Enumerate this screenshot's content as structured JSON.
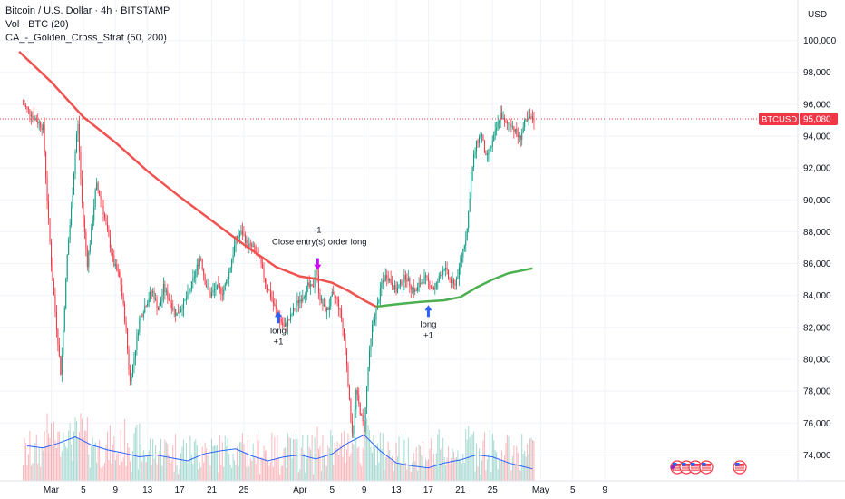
{
  "legend": {
    "title": "Bitcoin / U.S. Dollar · 4h · BITSTAMP",
    "volume": "Vol · BTC (20)",
    "strategy": "CA_-_Golden_Cross_Strat (50, 200)"
  },
  "currency_label": "USD",
  "last_price": {
    "symbol": "BTCUSD",
    "value": "95,080",
    "y": 95080
  },
  "colors": {
    "up": "#089981",
    "down": "#f23645",
    "ma_red": "#ef5350",
    "ma_green": "#4caf50",
    "vol_ma": "#2962ff",
    "signal": "#2962ff",
    "close": "#d500f9"
  },
  "chart_data": {
    "type": "candlestick",
    "ylim": [
      72600,
      101400
    ],
    "y_ticks": [
      "100,000",
      "98,000",
      "96,000",
      "94,000",
      "92,000",
      "90,000",
      "88,000",
      "86,000",
      "84,000",
      "82,000",
      "80,000",
      "78,000",
      "76,000",
      "74,000"
    ],
    "y_tick_values": [
      100000,
      98000,
      96000,
      94000,
      92000,
      90000,
      88000,
      86000,
      84000,
      82000,
      80000,
      78000,
      76000,
      74000
    ],
    "x_ticks": [
      "Mar",
      "5",
      "9",
      "13",
      "17",
      "21",
      "25",
      "Apr",
      "5",
      "9",
      "13",
      "17",
      "21",
      "25",
      "May",
      "5",
      "9"
    ],
    "x_tick_days": [
      1,
      5,
      9,
      13,
      17,
      21,
      25,
      32,
      36,
      40,
      44,
      48,
      52,
      56,
      62,
      66,
      70
    ],
    "x_unit": "days since Feb 28",
    "price_path": [
      [
        -2.5,
        96000
      ],
      [
        0,
        94500
      ],
      [
        0.5,
        90000
      ],
      [
        1,
        86000
      ],
      [
        1.5,
        83000
      ],
      [
        2.2,
        79000
      ],
      [
        3,
        86500
      ],
      [
        3.6,
        90000
      ],
      [
        4,
        93000
      ],
      [
        4.3,
        95000
      ],
      [
        4.8,
        90000
      ],
      [
        5.5,
        86000
      ],
      [
        6,
        88000
      ],
      [
        6.6,
        91000
      ],
      [
        7.2,
        90000
      ],
      [
        8,
        88000
      ],
      [
        8.8,
        86000
      ],
      [
        9.6,
        85000
      ],
      [
        10.3,
        82000
      ],
      [
        10.8,
        78500
      ],
      [
        11.3,
        80000
      ],
      [
        12,
        82500
      ],
      [
        12.8,
        83500
      ],
      [
        13.6,
        84300
      ],
      [
        14.4,
        83000
      ],
      [
        15,
        84500
      ],
      [
        15.8,
        83600
      ],
      [
        16.6,
        82800
      ],
      [
        17.4,
        83400
      ],
      [
        18.2,
        84200
      ],
      [
        19,
        85500
      ],
      [
        19.6,
        86500
      ],
      [
        20.2,
        84800
      ],
      [
        20.8,
        84000
      ],
      [
        21.6,
        84500
      ],
      [
        22.4,
        84200
      ],
      [
        23.2,
        85500
      ],
      [
        24,
        87500
      ],
      [
        24.8,
        88000
      ],
      [
        25.4,
        87200
      ],
      [
        26.2,
        87000
      ],
      [
        27,
        86200
      ],
      [
        27.6,
        85000
      ],
      [
        28.2,
        84200
      ],
      [
        28.8,
        83300
      ],
      [
        29.4,
        82600
      ],
      [
        30,
        82000
      ],
      [
        30.8,
        82600
      ],
      [
        31.6,
        83500
      ],
      [
        32.4,
        84000
      ],
      [
        33,
        84600
      ],
      [
        33.6,
        84400
      ],
      [
        34,
        86000
      ],
      [
        34.4,
        84000
      ],
      [
        34.8,
        83400
      ],
      [
        35.4,
        83000
      ],
      [
        36,
        84000
      ],
      [
        36.6,
        83800
      ],
      [
        37.2,
        82500
      ],
      [
        37.8,
        80000
      ],
      [
        38.2,
        77000
      ],
      [
        38.6,
        75000
      ],
      [
        39,
        78000
      ],
      [
        39.6,
        76500
      ],
      [
        40,
        75600
      ],
      [
        40.5,
        79500
      ],
      [
        41,
        82000
      ],
      [
        41.6,
        83200
      ],
      [
        42.2,
        84800
      ],
      [
        42.8,
        85300
      ],
      [
        43.4,
        84800
      ],
      [
        44,
        84300
      ],
      [
        44.6,
        84800
      ],
      [
        45.2,
        85200
      ],
      [
        45.8,
        84600
      ],
      [
        46.4,
        84200
      ],
      [
        47,
        84800
      ],
      [
        47.6,
        85100
      ],
      [
        48.2,
        84700
      ],
      [
        48.8,
        84400
      ],
      [
        49.4,
        85200
      ],
      [
        50,
        85800
      ],
      [
        50.6,
        85000
      ],
      [
        51.2,
        84600
      ],
      [
        51.8,
        85500
      ],
      [
        52.3,
        86800
      ],
      [
        52.8,
        88000
      ],
      [
        53.2,
        90500
      ],
      [
        53.6,
        92500
      ],
      [
        54,
        93500
      ],
      [
        54.6,
        94200
      ],
      [
        55.2,
        92500
      ],
      [
        55.8,
        93300
      ],
      [
        56.4,
        94300
      ],
      [
        57,
        95400
      ],
      [
        57.6,
        94700
      ],
      [
        58.2,
        94900
      ],
      [
        58.8,
        94300
      ],
      [
        59.4,
        93800
      ],
      [
        60,
        94800
      ],
      [
        60.6,
        95100
      ],
      [
        61.2,
        95080
      ]
    ],
    "ma_red_path": [
      [
        -3,
        99300
      ],
      [
        1,
        97400
      ],
      [
        5,
        95200
      ],
      [
        9,
        93600
      ],
      [
        13,
        91800
      ],
      [
        17,
        90200
      ],
      [
        21,
        88700
      ],
      [
        25,
        87200
      ],
      [
        29,
        85800
      ],
      [
        32,
        85200
      ],
      [
        34,
        85050
      ],
      [
        36,
        84800
      ],
      [
        38,
        84300
      ],
      [
        40,
        83700
      ],
      [
        41.5,
        83300
      ]
    ],
    "ma_green_path": [
      [
        41.5,
        83300
      ],
      [
        44,
        83450
      ],
      [
        47,
        83600
      ],
      [
        50,
        83700
      ],
      [
        52,
        83900
      ],
      [
        54,
        84500
      ],
      [
        56,
        85000
      ],
      [
        58,
        85400
      ],
      [
        61,
        85700
      ]
    ],
    "volume_ma_ylim": [
      0,
      100
    ],
    "volume_ma_path": [
      [
        -2,
        35
      ],
      [
        0,
        33
      ],
      [
        2,
        38
      ],
      [
        4,
        44
      ],
      [
        6,
        36
      ],
      [
        8,
        31
      ],
      [
        10,
        28
      ],
      [
        12,
        24
      ],
      [
        14,
        26
      ],
      [
        16,
        23
      ],
      [
        18,
        20
      ],
      [
        20,
        27
      ],
      [
        22,
        30
      ],
      [
        24,
        32
      ],
      [
        26,
        25
      ],
      [
        28,
        20
      ],
      [
        30,
        24
      ],
      [
        32,
        26
      ],
      [
        34,
        22
      ],
      [
        36,
        27
      ],
      [
        38,
        38
      ],
      [
        40,
        46
      ],
      [
        42,
        30
      ],
      [
        44,
        18
      ],
      [
        46,
        15
      ],
      [
        48,
        13
      ],
      [
        50,
        18
      ],
      [
        52,
        21
      ],
      [
        54,
        26
      ],
      [
        56,
        24
      ],
      [
        58,
        18
      ],
      [
        60,
        14
      ],
      [
        61,
        12
      ]
    ],
    "markers": [
      {
        "day": 29.3,
        "price": 83000,
        "text": "long",
        "qty": "+1",
        "dir": "up"
      },
      {
        "day": 48.0,
        "price": 83400,
        "text": "long",
        "qty": "+1",
        "dir": "up"
      },
      {
        "day": 34.2,
        "price": 85600,
        "text": "Close entry(s) order long",
        "qty": "-1",
        "dir": "down"
      }
    ],
    "title": "Bitcoin / U.S. Dollar · 4h · BITSTAMP"
  }
}
